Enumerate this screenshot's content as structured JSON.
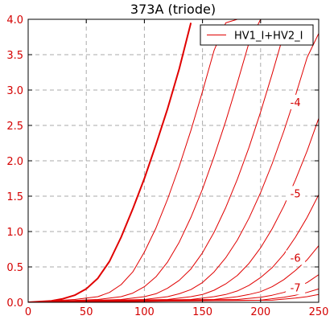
{
  "chart_data": {
    "type": "line",
    "title": "373A (triode)",
    "xlabel": "",
    "ylabel": "",
    "xlim": [
      0,
      250
    ],
    "ylim": [
      0,
      4.0
    ],
    "xticks": [
      0,
      50,
      100,
      150,
      200,
      250
    ],
    "yticks": [
      0.0,
      0.5,
      1.0,
      1.5,
      2.0,
      2.5,
      3.0,
      3.5,
      4.0
    ],
    "xtick_labels": [
      "0",
      "50",
      "100",
      "150",
      "200",
      "250"
    ],
    "ytick_labels": [
      "0.0",
      "0.5",
      "1.0",
      "1.5",
      "2.0",
      "2.5",
      "3.0",
      "3.5",
      "4.0"
    ],
    "grid": true,
    "legend": {
      "position": "top-right",
      "entries": [
        "HV1_I+HV2_I"
      ]
    },
    "colors": {
      "line": "#e00000",
      "tick": "#d40000",
      "grid": "#aaaaaa",
      "axis": "#000000"
    },
    "series": [
      {
        "name": "",
        "bold": true,
        "x": [
          0,
          10,
          20,
          30,
          40,
          50,
          60,
          70,
          80,
          90,
          100,
          110,
          120,
          130,
          140
        ],
        "y": [
          0.0,
          0.01,
          0.02,
          0.05,
          0.1,
          0.19,
          0.34,
          0.58,
          0.92,
          1.32,
          1.75,
          2.23,
          2.74,
          3.3,
          3.95
        ]
      },
      {
        "name": "",
        "x": [
          0,
          40,
          60,
          70,
          80,
          90,
          100,
          110,
          120,
          130,
          140,
          150,
          160,
          170,
          180
        ],
        "y": [
          0.0,
          0.04,
          0.08,
          0.14,
          0.25,
          0.43,
          0.71,
          1.05,
          1.46,
          1.92,
          2.43,
          2.98,
          3.56,
          3.95,
          4.0
        ]
      },
      {
        "name": "",
        "x": [
          0,
          60,
          80,
          90,
          100,
          110,
          120,
          130,
          140,
          150,
          160,
          170,
          180,
          190,
          200
        ],
        "y": [
          0.0,
          0.04,
          0.08,
          0.13,
          0.22,
          0.36,
          0.57,
          0.85,
          1.2,
          1.6,
          2.06,
          2.56,
          3.1,
          3.67,
          4.0
        ]
      },
      {
        "name": "",
        "x": [
          0,
          80,
          100,
          110,
          120,
          130,
          140,
          150,
          160,
          170,
          180,
          190,
          200,
          210,
          220
        ],
        "y": [
          0.0,
          0.04,
          0.08,
          0.12,
          0.2,
          0.31,
          0.47,
          0.7,
          0.99,
          1.34,
          1.74,
          2.19,
          2.69,
          3.23,
          3.8
        ]
      },
      {
        "name": "",
        "x": [
          0,
          100,
          120,
          130,
          140,
          150,
          160,
          170,
          180,
          190,
          200,
          210,
          220,
          230,
          240,
          250
        ],
        "y": [
          0.0,
          0.04,
          0.08,
          0.12,
          0.18,
          0.28,
          0.43,
          0.63,
          0.88,
          1.19,
          1.55,
          1.96,
          2.42,
          2.92,
          3.46,
          3.8
        ]
      },
      {
        "name": "",
        "x": [
          0,
          120,
          140,
          150,
          160,
          170,
          180,
          190,
          200,
          210,
          220,
          230,
          240,
          250
        ],
        "y": [
          0.0,
          0.04,
          0.08,
          0.11,
          0.17,
          0.26,
          0.38,
          0.55,
          0.77,
          1.04,
          1.36,
          1.73,
          2.14,
          2.6
        ]
      },
      {
        "name": "",
        "x": [
          0,
          140,
          160,
          170,
          180,
          190,
          200,
          210,
          220,
          230,
          240,
          250
        ],
        "y": [
          0.0,
          0.04,
          0.08,
          0.11,
          0.16,
          0.24,
          0.35,
          0.49,
          0.68,
          0.92,
          1.2,
          1.52
        ]
      },
      {
        "name": "",
        "x": [
          0,
          160,
          180,
          190,
          200,
          210,
          220,
          230,
          240,
          250
        ],
        "y": [
          0.0,
          0.04,
          0.08,
          0.11,
          0.15,
          0.22,
          0.32,
          0.45,
          0.6,
          0.8
        ]
      },
      {
        "name": "",
        "x": [
          0,
          180,
          200,
          210,
          220,
          230,
          240,
          250
        ],
        "y": [
          0.0,
          0.04,
          0.07,
          0.1,
          0.14,
          0.2,
          0.28,
          0.39
        ]
      },
      {
        "name": "",
        "x": [
          0,
          200,
          220,
          230,
          240,
          250
        ],
        "y": [
          0.0,
          0.03,
          0.07,
          0.1,
          0.14,
          0.19
        ]
      },
      {
        "name": "",
        "x": [
          0,
          210,
          230,
          240,
          250
        ],
        "y": [
          0.0,
          0.03,
          0.06,
          0.08,
          0.11
        ]
      }
    ],
    "annotations": [
      {
        "text": "-4",
        "x": 230,
        "y": 2.82
      },
      {
        "text": "-5",
        "x": 230,
        "y": 1.53
      },
      {
        "text": "-6",
        "x": 230,
        "y": 0.62
      },
      {
        "text": "-7",
        "x": 230,
        "y": 0.2
      }
    ]
  }
}
